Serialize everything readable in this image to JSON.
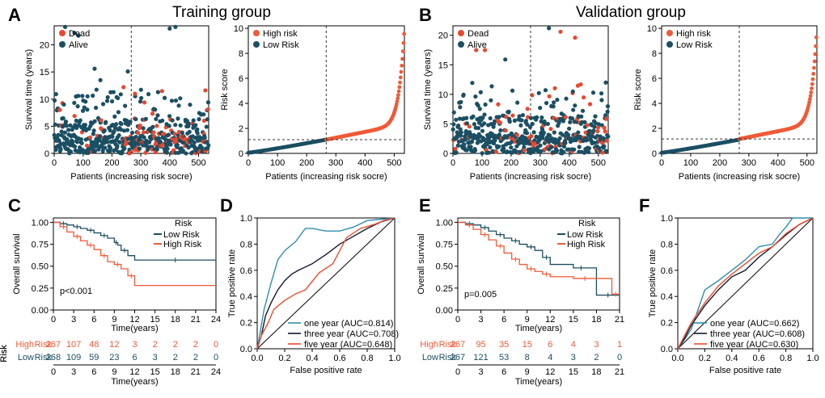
{
  "colors": {
    "dead": "#e8492e",
    "alive": "#1b4f63",
    "high": "#f05a36",
    "low": "#1b4f63",
    "diag": "#000000",
    "curve1": "#2d8fb0",
    "curve2": "#101830",
    "curve3": "#f04a2a"
  },
  "chart_data": [
    {
      "panel": "A",
      "type": "scatter",
      "title": "Training group",
      "xlabel": "Patients (increasing risk socre)",
      "ylabel": "Survival time (years)",
      "xlim": [
        0,
        535
      ],
      "ylim": [
        0,
        23.5
      ],
      "xticks": [
        0,
        100,
        200,
        300,
        400,
        500
      ],
      "yticks": [
        0,
        5,
        10,
        15,
        20
      ],
      "series": [
        {
          "name": "Dead"
        },
        {
          "name": "Alive"
        }
      ],
      "n": 535,
      "cutoff": 267,
      "notable_points": [
        {
          "x": 38,
          "y": 23.3,
          "s": "Alive"
        },
        {
          "x": 70,
          "y": 22.2,
          "s": "Alive"
        },
        {
          "x": 84,
          "y": 21.7,
          "s": "Alive"
        },
        {
          "x": 140,
          "y": 15.6,
          "s": "Alive"
        },
        {
          "x": 255,
          "y": 15.1,
          "s": "Alive"
        },
        {
          "x": 160,
          "y": 13.5,
          "s": "Alive"
        },
        {
          "x": 400,
          "y": 23.0,
          "s": "Alive"
        },
        {
          "x": 420,
          "y": 23.3,
          "s": "Alive"
        },
        {
          "x": 240,
          "y": 12.2,
          "s": "Dead"
        },
        {
          "x": 280,
          "y": 11.0,
          "s": "Dead"
        }
      ]
    },
    {
      "panel": "A",
      "type": "line",
      "xlabel": "Patients (increasing risk socre)",
      "ylabel": "Risk score",
      "xlim": [
        0,
        535
      ],
      "ylim": [
        0,
        10.2
      ],
      "xticks": [
        0,
        100,
        200,
        300,
        400,
        500
      ],
      "yticks": [
        0,
        2,
        4,
        6,
        8,
        10
      ],
      "series": [
        {
          "name": "High risk"
        },
        {
          "name": "Low Risk"
        }
      ],
      "cutoff_x": 267,
      "cutoff_y": 1.1,
      "max_score": 9.9
    },
    {
      "panel": "B",
      "type": "scatter",
      "title": "Validation group",
      "xlabel": "Patients (increasing risk socre)",
      "ylabel": "Survival time (years)",
      "xlim": [
        0,
        534
      ],
      "ylim": [
        0,
        21.6
      ],
      "xticks": [
        0,
        100,
        200,
        300,
        400,
        500
      ],
      "yticks": [
        0,
        5,
        10,
        15,
        20
      ],
      "series": [
        {
          "name": "Dead"
        },
        {
          "name": "Alive"
        }
      ],
      "n": 534,
      "cutoff": 267,
      "notable_points": [
        {
          "x": 330,
          "y": 21.2,
          "s": "Alive"
        },
        {
          "x": 370,
          "y": 20.6,
          "s": "Dead"
        },
        {
          "x": 420,
          "y": 19.6,
          "s": "Dead"
        },
        {
          "x": 80,
          "y": 17.5,
          "s": "Dead"
        },
        {
          "x": 110,
          "y": 17.5,
          "s": "Dead"
        },
        {
          "x": 180,
          "y": 15.9,
          "s": "Alive"
        }
      ]
    },
    {
      "panel": "B",
      "type": "line",
      "xlabel": "Patients (increasing risk socre)",
      "ylabel": "Risk score",
      "xlim": [
        0,
        534
      ],
      "ylim": [
        0,
        10.2
      ],
      "xticks": [
        0,
        100,
        200,
        300,
        400,
        500
      ],
      "yticks": [
        0,
        2,
        4,
        6,
        8,
        10
      ],
      "series": [
        {
          "name": "High risk"
        },
        {
          "name": "Low Risk"
        }
      ],
      "cutoff_x": 267,
      "cutoff_y": 1.15,
      "max_score": 10.0
    },
    {
      "panel": "C",
      "type": "line",
      "xlabel": "Time(years)",
      "ylabel": "Overall survival",
      "legend_title": "Risk",
      "xlim": [
        0,
        24
      ],
      "ylim": [
        0,
        1.05
      ],
      "xticks": [
        0,
        3,
        6,
        9,
        12,
        15,
        18,
        21,
        24
      ],
      "yticks": [
        "0.00",
        "0.25",
        "0.50",
        "0.75",
        "1.00"
      ],
      "pvalue": "p<0.001",
      "series": [
        {
          "name": "Low Risk",
          "x": [
            0,
            1,
            2,
            3,
            4,
            5,
            6,
            7,
            8,
            9,
            9.5,
            10,
            11,
            12,
            24
          ],
          "y": [
            1,
            0.985,
            0.97,
            0.95,
            0.93,
            0.91,
            0.88,
            0.85,
            0.82,
            0.77,
            0.74,
            0.68,
            0.62,
            0.57,
            0.57
          ]
        },
        {
          "name": "High Risk",
          "x": [
            0,
            1,
            2,
            3,
            4,
            5,
            6,
            7,
            8,
            9,
            10,
            11,
            12,
            24
          ],
          "y": [
            1,
            0.95,
            0.89,
            0.84,
            0.79,
            0.74,
            0.69,
            0.62,
            0.55,
            0.52,
            0.47,
            0.39,
            0.28,
            0.28
          ]
        }
      ],
      "risk_table": {
        "label": "Risk",
        "times": [
          "0",
          "3",
          "6",
          "9",
          "12",
          "15",
          "18",
          "21",
          "24"
        ],
        "rows": [
          {
            "name": "High",
            "label": "Risk",
            "counts": [
              "267",
              "107",
              "48",
              "12",
              "3",
              "2",
              "2",
              "2",
              "0"
            ]
          },
          {
            "name": "Low",
            "label": "Risk",
            "counts": [
              "268",
              "109",
              "59",
              "23",
              "6",
              "3",
              "2",
              "2",
              "0"
            ]
          }
        ],
        "xlabel": "Time(years)"
      }
    },
    {
      "panel": "D",
      "type": "line",
      "xlabel": "False positive rate",
      "ylabel": "True positive rate",
      "xlim": [
        0,
        1
      ],
      "ylim": [
        0,
        1
      ],
      "xticks": [
        "0.0",
        "0.2",
        "0.4",
        "0.6",
        "0.8",
        "1.0"
      ],
      "yticks": [
        "0.0",
        "0.2",
        "0.4",
        "0.6",
        "0.8",
        "1.0"
      ],
      "series": [
        {
          "name": "one year (AUC=0.814)",
          "x": [
            0,
            0.02,
            0.05,
            0.1,
            0.15,
            0.2,
            0.28,
            0.35,
            0.4,
            0.5,
            0.6,
            0.7,
            0.8,
            0.9,
            1
          ],
          "y": [
            0,
            0.12,
            0.3,
            0.5,
            0.68,
            0.75,
            0.82,
            0.92,
            0.92,
            0.9,
            0.9,
            0.93,
            0.98,
            0.99,
            1
          ]
        },
        {
          "name": "three year (AUC=0.708)",
          "x": [
            0,
            0.03,
            0.06,
            0.1,
            0.15,
            0.2,
            0.25,
            0.3,
            0.4,
            0.5,
            0.6,
            0.7,
            0.8,
            0.9,
            1
          ],
          "y": [
            0,
            0.1,
            0.25,
            0.35,
            0.45,
            0.52,
            0.57,
            0.6,
            0.65,
            0.72,
            0.8,
            0.86,
            0.92,
            0.97,
            1
          ]
        },
        {
          "name": "five year (AUC=0.648)",
          "x": [
            0,
            0.03,
            0.08,
            0.12,
            0.2,
            0.28,
            0.35,
            0.45,
            0.55,
            0.65,
            0.75,
            0.85,
            0.92,
            1
          ],
          "y": [
            0,
            0.1,
            0.2,
            0.3,
            0.37,
            0.42,
            0.45,
            0.58,
            0.65,
            0.85,
            0.92,
            0.95,
            0.98,
            1
          ]
        }
      ]
    },
    {
      "panel": "E",
      "type": "line",
      "xlabel": "Time(years)",
      "ylabel": "Overall survival",
      "legend_title": "Risk",
      "xlim": [
        0,
        21
      ],
      "ylim": [
        0,
        1.05
      ],
      "xticks": [
        0,
        3,
        6,
        9,
        12,
        15,
        18,
        21
      ],
      "yticks": [
        "0.00",
        "0.25",
        "0.50",
        "0.75",
        "1.00"
      ],
      "pvalue": "p=0.005",
      "series": [
        {
          "name": "Low Risk",
          "x": [
            0,
            1,
            2,
            3,
            4,
            5,
            6,
            7,
            8,
            9,
            10,
            11,
            12,
            15,
            17,
            18,
            21
          ],
          "y": [
            1,
            0.985,
            0.97,
            0.94,
            0.9,
            0.86,
            0.82,
            0.79,
            0.75,
            0.72,
            0.68,
            0.6,
            0.52,
            0.48,
            0.48,
            0.17,
            0.17
          ]
        },
        {
          "name": "High Risk",
          "x": [
            0,
            1,
            2,
            3,
            4,
            5,
            6,
            7,
            8,
            9,
            10,
            11,
            12,
            15,
            18,
            20,
            21
          ],
          "y": [
            1,
            0.97,
            0.92,
            0.86,
            0.8,
            0.73,
            0.65,
            0.58,
            0.52,
            0.47,
            0.44,
            0.41,
            0.38,
            0.36,
            0.36,
            0.18,
            0.18
          ]
        }
      ],
      "risk_table": {
        "label": "Risk",
        "times": [
          "0",
          "3",
          "6",
          "9",
          "12",
          "15",
          "18",
          "21"
        ],
        "rows": [
          {
            "name": "High",
            "label": "Risk",
            "counts": [
              "267",
              "95",
              "35",
              "15",
              "6",
              "4",
              "3",
              "1"
            ]
          },
          {
            "name": "Low",
            "label": "Risk",
            "counts": [
              "267",
              "121",
              "53",
              "8",
              "4",
              "3",
              "2",
              "0"
            ]
          }
        ],
        "xlabel": "Time(years)"
      }
    },
    {
      "panel": "F",
      "type": "line",
      "xlabel": "False positive rate",
      "ylabel": "True positive rate",
      "xlim": [
        0,
        1
      ],
      "ylim": [
        0,
        1
      ],
      "xticks": [
        "0.0",
        "0.2",
        "0.4",
        "0.6",
        "0.8",
        "1.0"
      ],
      "yticks": [
        "0.0",
        "0.2",
        "0.4",
        "0.6",
        "0.8",
        "1.0"
      ],
      "series": [
        {
          "name": "one year (AUC=0.662)",
          "x": [
            0,
            0.05,
            0.1,
            0.15,
            0.2,
            0.3,
            0.4,
            0.5,
            0.6,
            0.7,
            0.75,
            0.8,
            0.85,
            0.9,
            1
          ],
          "y": [
            0,
            0.07,
            0.15,
            0.3,
            0.45,
            0.52,
            0.6,
            0.68,
            0.78,
            0.8,
            0.87,
            0.93,
            1,
            1,
            1
          ]
        },
        {
          "name": "three year (AUC=0.608)",
          "x": [
            0,
            0.05,
            0.1,
            0.2,
            0.3,
            0.4,
            0.5,
            0.6,
            0.7,
            0.8,
            0.9,
            1
          ],
          "y": [
            0,
            0.08,
            0.18,
            0.33,
            0.45,
            0.55,
            0.6,
            0.7,
            0.78,
            0.87,
            0.95,
            1
          ]
        },
        {
          "name": "five year (AUC=0.630)",
          "x": [
            0,
            0.05,
            0.1,
            0.2,
            0.3,
            0.4,
            0.5,
            0.6,
            0.7,
            0.8,
            0.9,
            1
          ],
          "y": [
            0,
            0.1,
            0.2,
            0.35,
            0.48,
            0.57,
            0.65,
            0.73,
            0.78,
            0.88,
            0.95,
            1
          ]
        }
      ]
    }
  ],
  "labels": {
    "panelA": "A",
    "panelB": "B",
    "panelC": "C",
    "panelD": "D",
    "panelE": "E",
    "panelF": "F",
    "dead": "Dead",
    "alive": "Alive",
    "high": "High risk",
    "low": "Low Risk",
    "lowKM": "Low Risk",
    "highKM": "High Risk"
  }
}
